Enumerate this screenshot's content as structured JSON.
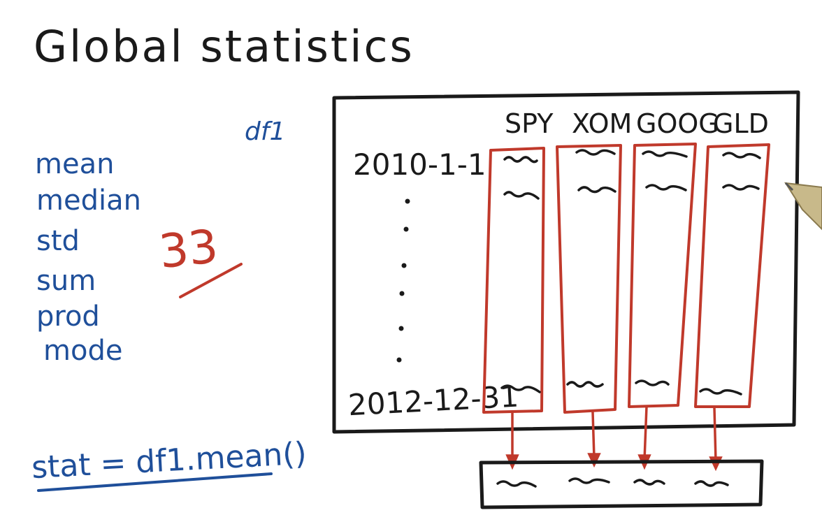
{
  "title": "Global statistics",
  "dataframe_label": "df1",
  "stats": [
    "mean",
    "median",
    "std",
    "sum",
    "prod",
    "mode"
  ],
  "count": "33",
  "code": "stat = df1.mean()",
  "columns": [
    "SPY",
    "XOM",
    "GOOG",
    "GLD"
  ],
  "row_labels": {
    "start": "2010-1-1",
    "end": "2012-12-31"
  },
  "colors": {
    "ink": "#1a1a1a",
    "blue": "#1f4f9a",
    "red": "#c0392b",
    "pen_tip": "#c8b98a"
  }
}
